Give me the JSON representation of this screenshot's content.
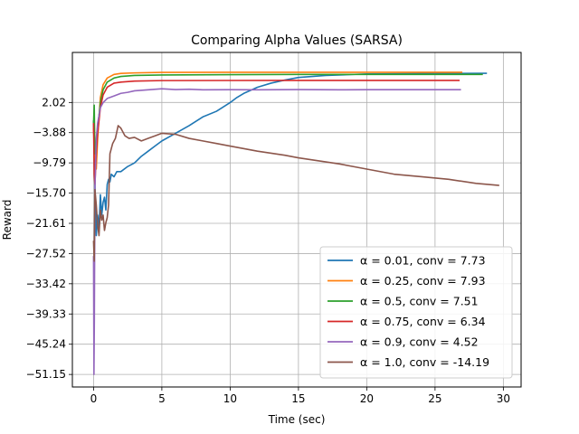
{
  "chart_data": {
    "type": "line",
    "title": "Comparing Alpha Values (SARSA)",
    "xlabel": "Time (sec)",
    "ylabel": "Reward",
    "xlim": [
      -1.55,
      31.3
    ],
    "ylim": [
      -53.6,
      11.8
    ],
    "xticks": [
      0,
      5,
      10,
      15,
      20,
      25,
      30
    ],
    "yticks": [
      2.02,
      -3.88,
      -9.79,
      -15.7,
      -21.61,
      -27.52,
      -33.42,
      -39.33,
      -45.24,
      -51.15
    ],
    "ytick_labels": [
      "2.02",
      "−3.88",
      "−9.79",
      "−15.70",
      "−21.61",
      "−27.52",
      "−33.42",
      "−39.33",
      "−45.24",
      "−51.15"
    ],
    "xtick_labels": [
      "0",
      "5",
      "10",
      "15",
      "20",
      "25",
      "30"
    ],
    "grid": true,
    "legend_position": "lower-right",
    "series": [
      {
        "name": "α = 0.01, conv = 7.73",
        "color": "#1f77b4",
        "x": [
          0,
          0.1,
          0.2,
          0.3,
          0.4,
          0.5,
          0.6,
          0.7,
          0.8,
          0.9,
          1.0,
          1.1,
          1.2,
          1.3,
          1.5,
          1.7,
          2.0,
          2.5,
          3,
          3.5,
          4,
          4.5,
          5,
          6,
          7,
          8,
          9,
          10,
          10.5,
          11,
          12,
          13,
          14,
          15,
          17,
          20,
          25,
          28.8
        ],
        "y": [
          -1.5,
          -14.0,
          -24.0,
          -20.0,
          -22.5,
          -16.0,
          -20.0,
          -17.5,
          -16.5,
          -19.0,
          -14.0,
          -13.0,
          -13.5,
          -12.0,
          -12.5,
          -11.5,
          -11.5,
          -10.5,
          -9.8,
          -8.5,
          -7.5,
          -6.5,
          -5.5,
          -4.0,
          -2.5,
          -0.8,
          0.3,
          2.0,
          3.0,
          3.8,
          5.0,
          5.8,
          6.4,
          6.9,
          7.3,
          7.6,
          7.7,
          7.73
        ]
      },
      {
        "name": "α = 0.25, conv = 7.93",
        "color": "#ff7f0e",
        "x": [
          0,
          0.1,
          0.2,
          0.3,
          0.5,
          0.7,
          1.0,
          1.5,
          2.0,
          3.0,
          5.0,
          10,
          15,
          20,
          27
        ],
        "y": [
          -3.0,
          -8.0,
          -11.0,
          -5.0,
          3.0,
          5.5,
          6.8,
          7.5,
          7.7,
          7.8,
          7.9,
          7.92,
          7.93,
          7.93,
          7.93
        ]
      },
      {
        "name": "α = 0.5, conv = 7.51",
        "color": "#2ca02c",
        "x": [
          0,
          0.05,
          0.1,
          0.2,
          0.3,
          0.5,
          0.7,
          1.0,
          1.5,
          2.0,
          3.0,
          5.0,
          10,
          15,
          20,
          25,
          28.5
        ],
        "y": [
          -2.0,
          1.5,
          -8.0,
          -6.0,
          -3.0,
          2.0,
          4.5,
          6.0,
          6.8,
          7.1,
          7.3,
          7.4,
          7.45,
          7.5,
          7.5,
          7.51,
          7.51
        ]
      },
      {
        "name": "α = 0.75, conv = 6.34",
        "color": "#d62728",
        "x": [
          0,
          0.05,
          0.1,
          0.2,
          0.3,
          0.5,
          0.7,
          1.0,
          1.5,
          2.0,
          3.0,
          5.0,
          10,
          15,
          20,
          26.8
        ],
        "y": [
          -2.0,
          -12.0,
          -14.0,
          -8.0,
          -4.0,
          1.0,
          3.5,
          5.0,
          5.8,
          6.0,
          6.2,
          6.3,
          6.32,
          6.34,
          6.34,
          6.34
        ]
      },
      {
        "name": "α = 0.9, conv = 4.52",
        "color": "#9467bd",
        "x": [
          0,
          0.03,
          0.06,
          0.1,
          0.15,
          0.2,
          0.3,
          0.5,
          0.7,
          1.0,
          1.5,
          2.0,
          2.5,
          3.0,
          4.0,
          5.0,
          6.0,
          7.0,
          8.0,
          10,
          12,
          15,
          18,
          20,
          25,
          26.9
        ],
        "y": [
          -28.0,
          -51.15,
          -40.0,
          -15.0,
          -10.0,
          -5.0,
          -2.0,
          1.0,
          2.0,
          2.8,
          3.3,
          3.8,
          4.0,
          4.3,
          4.5,
          4.7,
          4.55,
          4.6,
          4.5,
          4.52,
          4.5,
          4.55,
          4.5,
          4.52,
          4.52,
          4.52
        ]
      },
      {
        "name": "α = 1.0, conv = -14.19",
        "color": "#8c564b",
        "x": [
          0,
          0.05,
          0.1,
          0.2,
          0.3,
          0.4,
          0.5,
          0.6,
          0.7,
          0.8,
          0.9,
          1.0,
          1.1,
          1.2,
          1.4,
          1.6,
          1.8,
          2.0,
          2.3,
          2.6,
          3.0,
          3.5,
          4.0,
          4.5,
          5.0,
          6.0,
          7.0,
          8.0,
          9.0,
          10,
          12,
          14,
          15,
          16,
          18,
          20,
          22,
          24,
          26,
          28,
          29.7
        ],
        "y": [
          -25.0,
          -29.0,
          -15.0,
          -18.0,
          -22.0,
          -24.0,
          -19.0,
          -21.0,
          -20.0,
          -23.0,
          -21.5,
          -20.5,
          -18.0,
          -8.0,
          -6.0,
          -5.0,
          -2.5,
          -3.0,
          -4.5,
          -5.0,
          -4.8,
          -5.5,
          -5.0,
          -4.5,
          -4.0,
          -4.2,
          -5.0,
          -5.5,
          -6.0,
          -6.5,
          -7.5,
          -8.3,
          -8.8,
          -9.2,
          -10.0,
          -11.0,
          -12.0,
          -12.5,
          -13.0,
          -13.8,
          -14.19
        ]
      }
    ]
  }
}
